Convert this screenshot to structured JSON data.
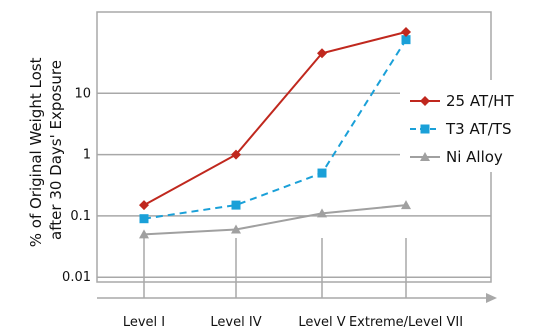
{
  "chart_data": {
    "type": "line",
    "categories": [
      "Level I",
      "Level IV",
      "Level V",
      "Extreme/Level VII"
    ],
    "ylabel_lines": [
      "% of Original Weight Lost",
      "after 30 Days' Exposure"
    ],
    "y_scale": "log",
    "ylim": [
      0.01,
      100
    ],
    "y_ticks": [
      0.01,
      0.1,
      1,
      10
    ],
    "y_tick_labels": [
      "0.01",
      "0.1",
      "1",
      "10"
    ],
    "grid": "horizontal",
    "legend": "right",
    "series": [
      {
        "name": "25 AT/HT",
        "values": [
          0.15,
          1,
          45,
          100
        ],
        "color": "#c0281e",
        "marker": "diamond",
        "dash": "solid"
      },
      {
        "name": "T3 AT/TS",
        "values": [
          0.09,
          0.15,
          0.5,
          75
        ],
        "color": "#1aa0d8",
        "marker": "square",
        "dash": "dashed"
      },
      {
        "name": "Ni Alloy",
        "values": [
          0.05,
          0.06,
          0.11,
          0.15
        ],
        "color": "#a0a0a0",
        "marker": "triangle",
        "dash": "solid"
      }
    ]
  }
}
